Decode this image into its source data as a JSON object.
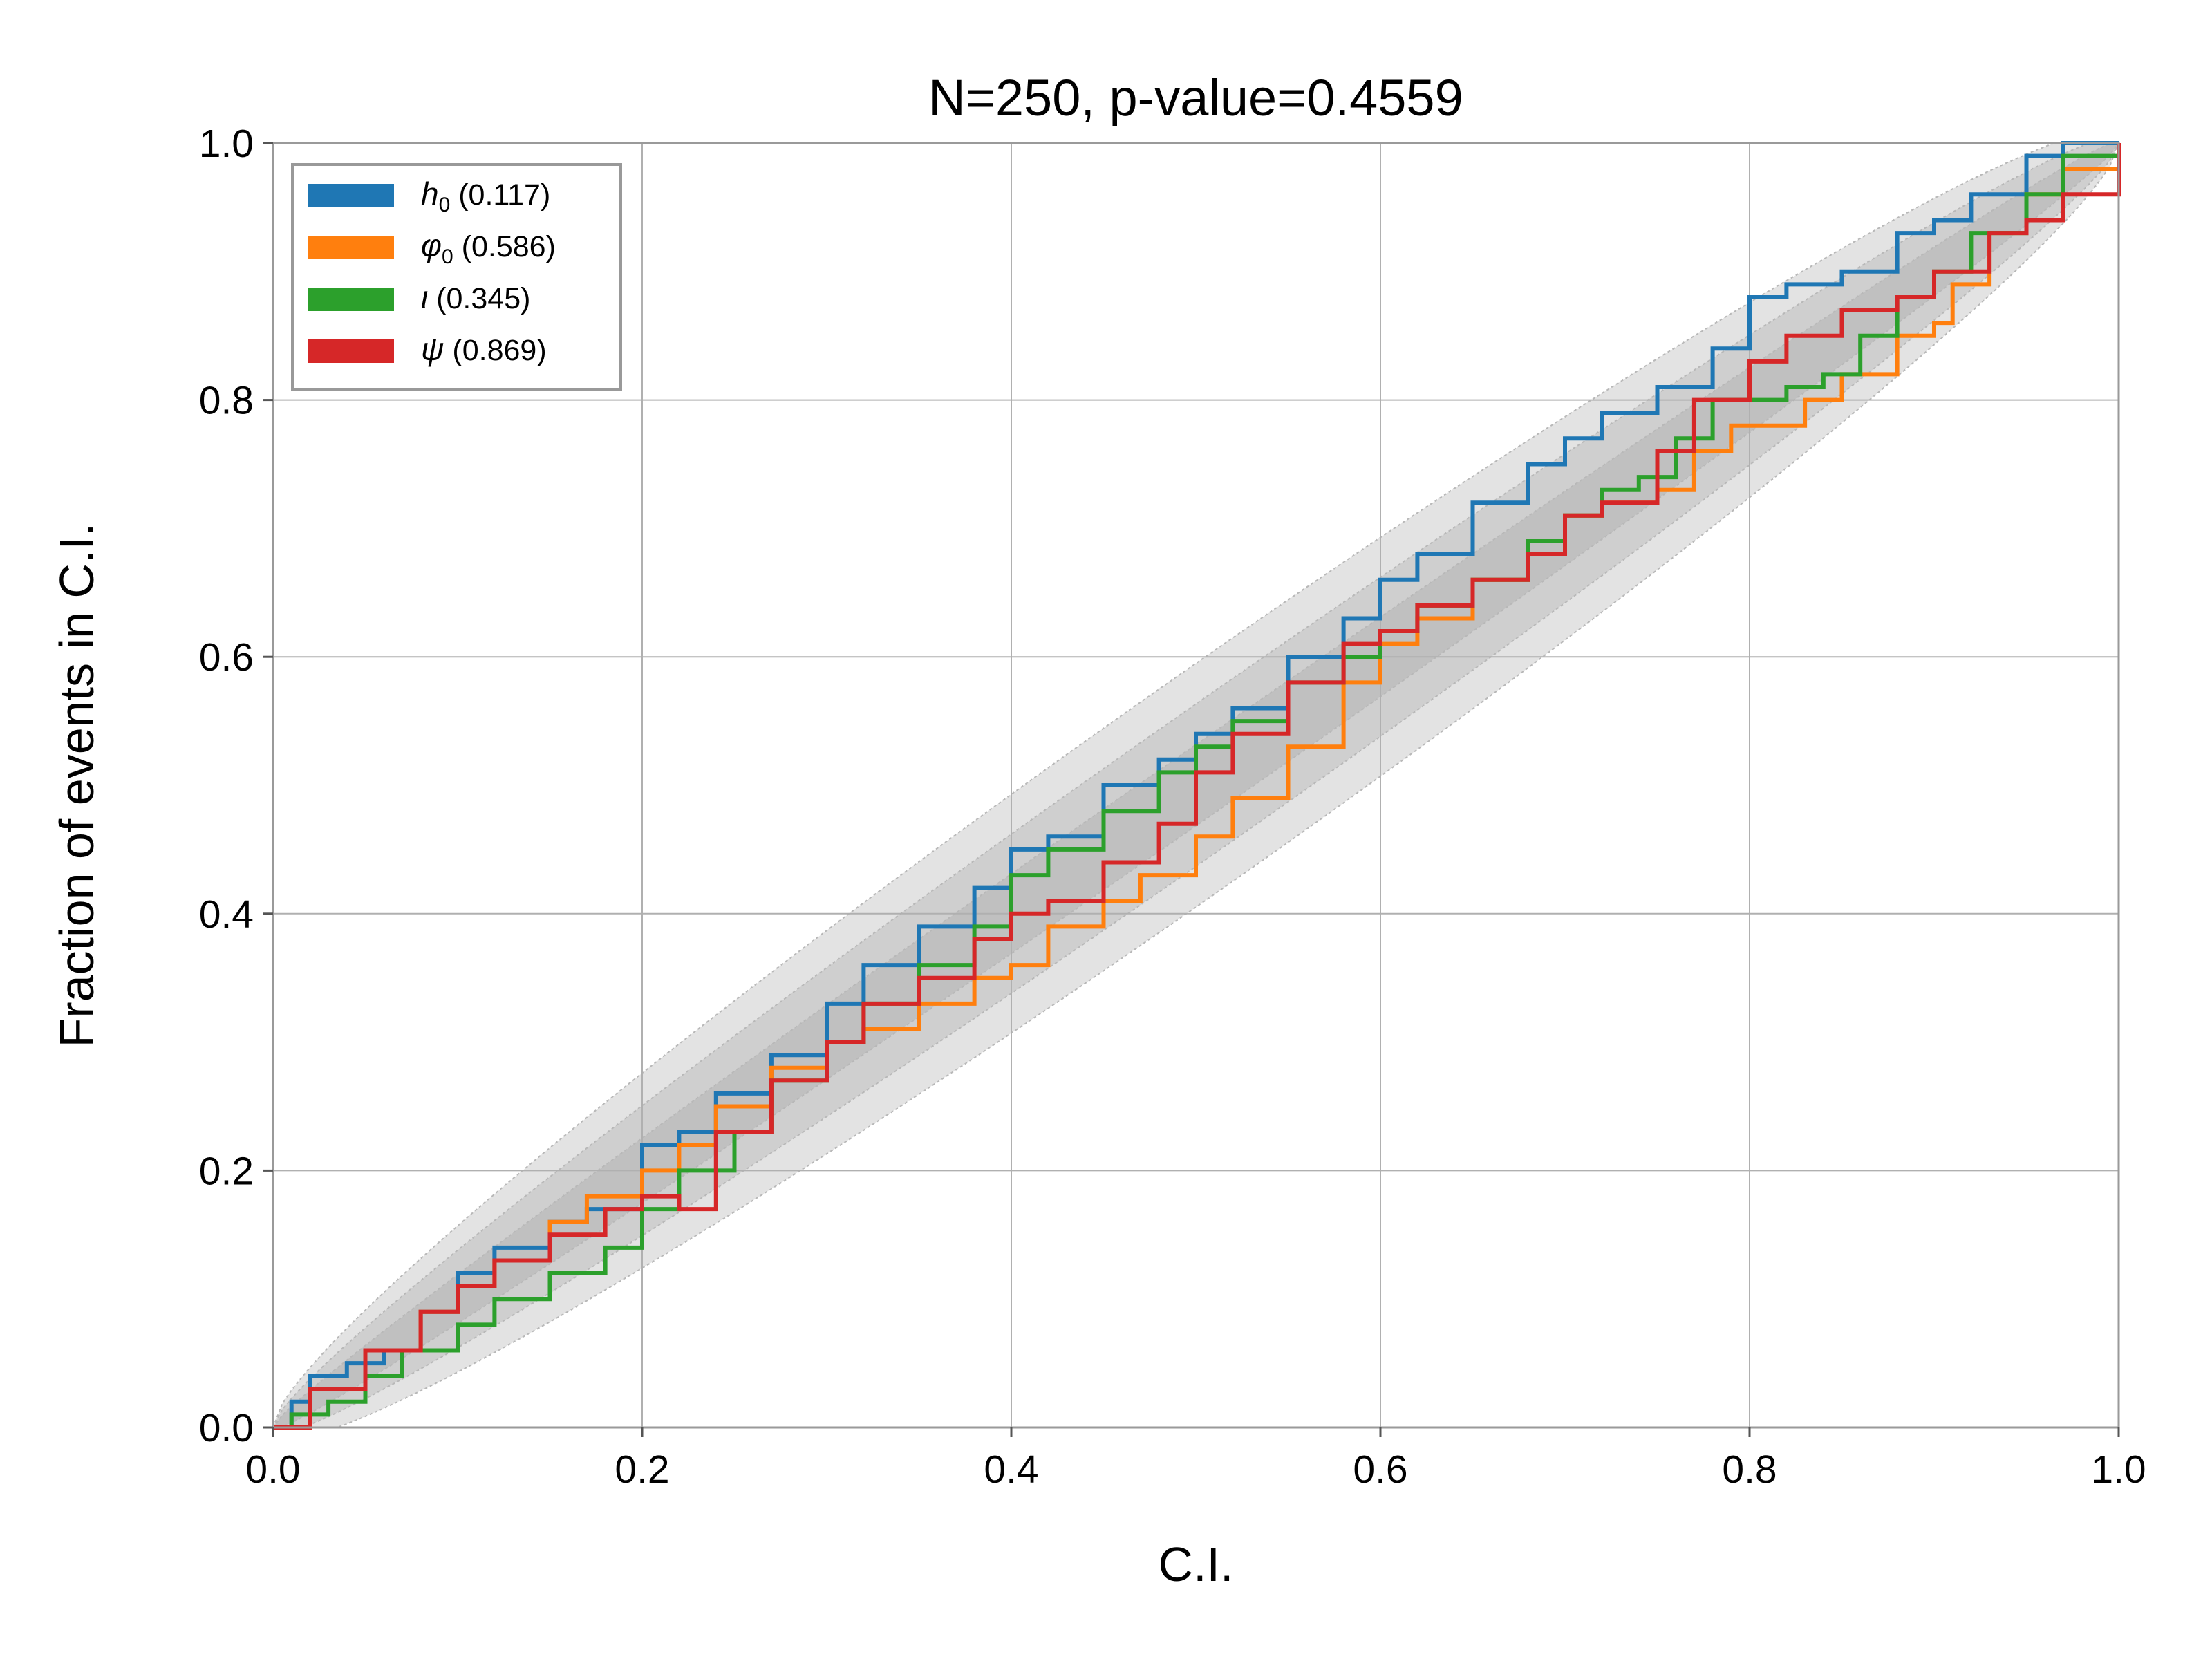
{
  "chart_data": {
    "type": "line",
    "title": "N=250, p-value=0.4559",
    "xlabel": "C.I.",
    "ylabel": "Fraction of events in C.I.",
    "xlim": [
      0,
      1
    ],
    "ylim": [
      0,
      1
    ],
    "xticks": [
      "0.0",
      "0.2",
      "0.4",
      "0.6",
      "0.8",
      "1.0"
    ],
    "yticks": [
      "0.0",
      "0.2",
      "0.4",
      "0.6",
      "0.8",
      "1.0"
    ],
    "grid": true,
    "legend_position": "top-left",
    "bands_color": "#9a9a9a",
    "series": [
      {
        "name": "h0",
        "symbol": "h",
        "subscript": "0",
        "value_label": "(0.117)",
        "color": "#1f77b4",
        "points": [
          [
            0,
            0
          ],
          [
            0.01,
            0.02
          ],
          [
            0.02,
            0.04
          ],
          [
            0.04,
            0.05
          ],
          [
            0.06,
            0.06
          ],
          [
            0.08,
            0.09
          ],
          [
            0.1,
            0.12
          ],
          [
            0.12,
            0.14
          ],
          [
            0.15,
            0.16
          ],
          [
            0.17,
            0.17
          ],
          [
            0.2,
            0.22
          ],
          [
            0.22,
            0.23
          ],
          [
            0.24,
            0.26
          ],
          [
            0.27,
            0.29
          ],
          [
            0.3,
            0.33
          ],
          [
            0.32,
            0.36
          ],
          [
            0.35,
            0.39
          ],
          [
            0.38,
            0.42
          ],
          [
            0.4,
            0.45
          ],
          [
            0.42,
            0.46
          ],
          [
            0.45,
            0.5
          ],
          [
            0.48,
            0.52
          ],
          [
            0.5,
            0.54
          ],
          [
            0.52,
            0.56
          ],
          [
            0.55,
            0.6
          ],
          [
            0.58,
            0.63
          ],
          [
            0.6,
            0.66
          ],
          [
            0.62,
            0.68
          ],
          [
            0.65,
            0.72
          ],
          [
            0.68,
            0.75
          ],
          [
            0.7,
            0.77
          ],
          [
            0.72,
            0.79
          ],
          [
            0.75,
            0.81
          ],
          [
            0.78,
            0.84
          ],
          [
            0.8,
            0.88
          ],
          [
            0.82,
            0.89
          ],
          [
            0.85,
            0.9
          ],
          [
            0.88,
            0.93
          ],
          [
            0.9,
            0.94
          ],
          [
            0.92,
            0.96
          ],
          [
            0.95,
            0.99
          ],
          [
            0.97,
            1.0
          ],
          [
            1.0,
            1.0
          ]
        ]
      },
      {
        "name": "phi0",
        "symbol": "φ",
        "subscript": "0",
        "value_label": "(0.586)",
        "color": "#ff7f0e",
        "points": [
          [
            0,
            0
          ],
          [
            0.02,
            0.03
          ],
          [
            0.05,
            0.06
          ],
          [
            0.08,
            0.09
          ],
          [
            0.1,
            0.11
          ],
          [
            0.12,
            0.13
          ],
          [
            0.15,
            0.16
          ],
          [
            0.17,
            0.18
          ],
          [
            0.2,
            0.2
          ],
          [
            0.22,
            0.22
          ],
          [
            0.24,
            0.25
          ],
          [
            0.27,
            0.28
          ],
          [
            0.3,
            0.3
          ],
          [
            0.32,
            0.31
          ],
          [
            0.35,
            0.33
          ],
          [
            0.38,
            0.35
          ],
          [
            0.4,
            0.36
          ],
          [
            0.42,
            0.39
          ],
          [
            0.45,
            0.41
          ],
          [
            0.47,
            0.43
          ],
          [
            0.5,
            0.46
          ],
          [
            0.52,
            0.49
          ],
          [
            0.55,
            0.53
          ],
          [
            0.58,
            0.58
          ],
          [
            0.6,
            0.61
          ],
          [
            0.62,
            0.63
          ],
          [
            0.65,
            0.66
          ],
          [
            0.68,
            0.69
          ],
          [
            0.7,
            0.71
          ],
          [
            0.72,
            0.72
          ],
          [
            0.75,
            0.73
          ],
          [
            0.77,
            0.76
          ],
          [
            0.79,
            0.78
          ],
          [
            0.81,
            0.78
          ],
          [
            0.83,
            0.8
          ],
          [
            0.85,
            0.82
          ],
          [
            0.88,
            0.85
          ],
          [
            0.9,
            0.86
          ],
          [
            0.91,
            0.89
          ],
          [
            0.93,
            0.93
          ],
          [
            0.95,
            0.96
          ],
          [
            0.97,
            0.98
          ],
          [
            1.0,
            1.0
          ]
        ]
      },
      {
        "name": "iota",
        "symbol": "ι",
        "subscript": "",
        "value_label": "(0.345)",
        "color": "#2ca02c",
        "points": [
          [
            0,
            0
          ],
          [
            0.01,
            0.01
          ],
          [
            0.03,
            0.02
          ],
          [
            0.05,
            0.04
          ],
          [
            0.07,
            0.06
          ],
          [
            0.1,
            0.08
          ],
          [
            0.12,
            0.1
          ],
          [
            0.15,
            0.12
          ],
          [
            0.18,
            0.14
          ],
          [
            0.2,
            0.17
          ],
          [
            0.22,
            0.2
          ],
          [
            0.25,
            0.23
          ],
          [
            0.27,
            0.27
          ],
          [
            0.3,
            0.3
          ],
          [
            0.32,
            0.33
          ],
          [
            0.35,
            0.36
          ],
          [
            0.38,
            0.39
          ],
          [
            0.4,
            0.43
          ],
          [
            0.42,
            0.45
          ],
          [
            0.45,
            0.48
          ],
          [
            0.48,
            0.51
          ],
          [
            0.5,
            0.53
          ],
          [
            0.52,
            0.55
          ],
          [
            0.55,
            0.58
          ],
          [
            0.58,
            0.6
          ],
          [
            0.6,
            0.62
          ],
          [
            0.62,
            0.64
          ],
          [
            0.65,
            0.66
          ],
          [
            0.68,
            0.69
          ],
          [
            0.7,
            0.71
          ],
          [
            0.72,
            0.73
          ],
          [
            0.74,
            0.74
          ],
          [
            0.76,
            0.77
          ],
          [
            0.78,
            0.8
          ],
          [
            0.82,
            0.81
          ],
          [
            0.84,
            0.82
          ],
          [
            0.86,
            0.85
          ],
          [
            0.88,
            0.88
          ],
          [
            0.9,
            0.9
          ],
          [
            0.92,
            0.93
          ],
          [
            0.95,
            0.96
          ],
          [
            0.97,
            0.99
          ],
          [
            1.0,
            1.0
          ]
        ]
      },
      {
        "name": "psi",
        "symbol": "ψ",
        "subscript": "",
        "value_label": "(0.869)",
        "color": "#d62728",
        "points": [
          [
            0,
            0
          ],
          [
            0.02,
            0.03
          ],
          [
            0.05,
            0.06
          ],
          [
            0.08,
            0.09
          ],
          [
            0.1,
            0.11
          ],
          [
            0.12,
            0.13
          ],
          [
            0.15,
            0.15
          ],
          [
            0.18,
            0.17
          ],
          [
            0.2,
            0.18
          ],
          [
            0.22,
            0.17
          ],
          [
            0.24,
            0.23
          ],
          [
            0.27,
            0.27
          ],
          [
            0.3,
            0.3
          ],
          [
            0.32,
            0.33
          ],
          [
            0.35,
            0.35
          ],
          [
            0.38,
            0.38
          ],
          [
            0.4,
            0.4
          ],
          [
            0.42,
            0.41
          ],
          [
            0.45,
            0.44
          ],
          [
            0.48,
            0.47
          ],
          [
            0.5,
            0.51
          ],
          [
            0.52,
            0.54
          ],
          [
            0.55,
            0.58
          ],
          [
            0.58,
            0.61
          ],
          [
            0.6,
            0.62
          ],
          [
            0.62,
            0.64
          ],
          [
            0.65,
            0.66
          ],
          [
            0.68,
            0.68
          ],
          [
            0.7,
            0.71
          ],
          [
            0.72,
            0.72
          ],
          [
            0.75,
            0.76
          ],
          [
            0.77,
            0.8
          ],
          [
            0.8,
            0.83
          ],
          [
            0.82,
            0.85
          ],
          [
            0.85,
            0.87
          ],
          [
            0.88,
            0.88
          ],
          [
            0.9,
            0.9
          ],
          [
            0.93,
            0.93
          ],
          [
            0.95,
            0.94
          ],
          [
            0.97,
            0.96
          ],
          [
            1.0,
            1.0
          ]
        ]
      }
    ]
  }
}
